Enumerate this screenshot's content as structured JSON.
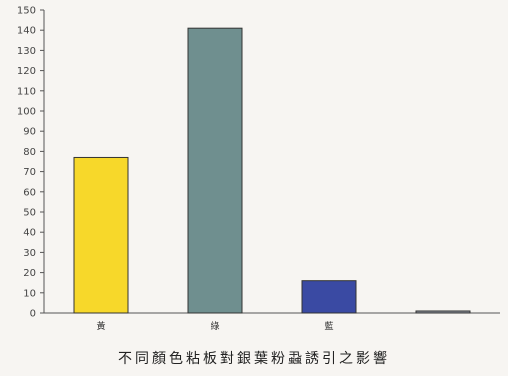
{
  "chart_data": {
    "type": "bar",
    "title": "不同顏色粘板對銀葉粉蝨誘引之影響",
    "categories": [
      "黃",
      "綠",
      "藍",
      ""
    ],
    "values": [
      77,
      141,
      16,
      1
    ],
    "colors": [
      "#f7d82a",
      "#6f8f8f",
      "#3a4aa3",
      "#8a8f9a"
    ],
    "ylim": [
      0,
      150
    ],
    "yticks": [
      0,
      10,
      20,
      30,
      40,
      50,
      60,
      70,
      80,
      90,
      100,
      110,
      120,
      130,
      140,
      150
    ],
    "ytick_labels": [
      "0",
      "10",
      "20",
      "30",
      "40",
      "50",
      "60",
      "70",
      "80",
      "90",
      "100",
      "110",
      "120",
      "130",
      "140",
      "150"
    ],
    "grid": false,
    "legend": "none"
  }
}
